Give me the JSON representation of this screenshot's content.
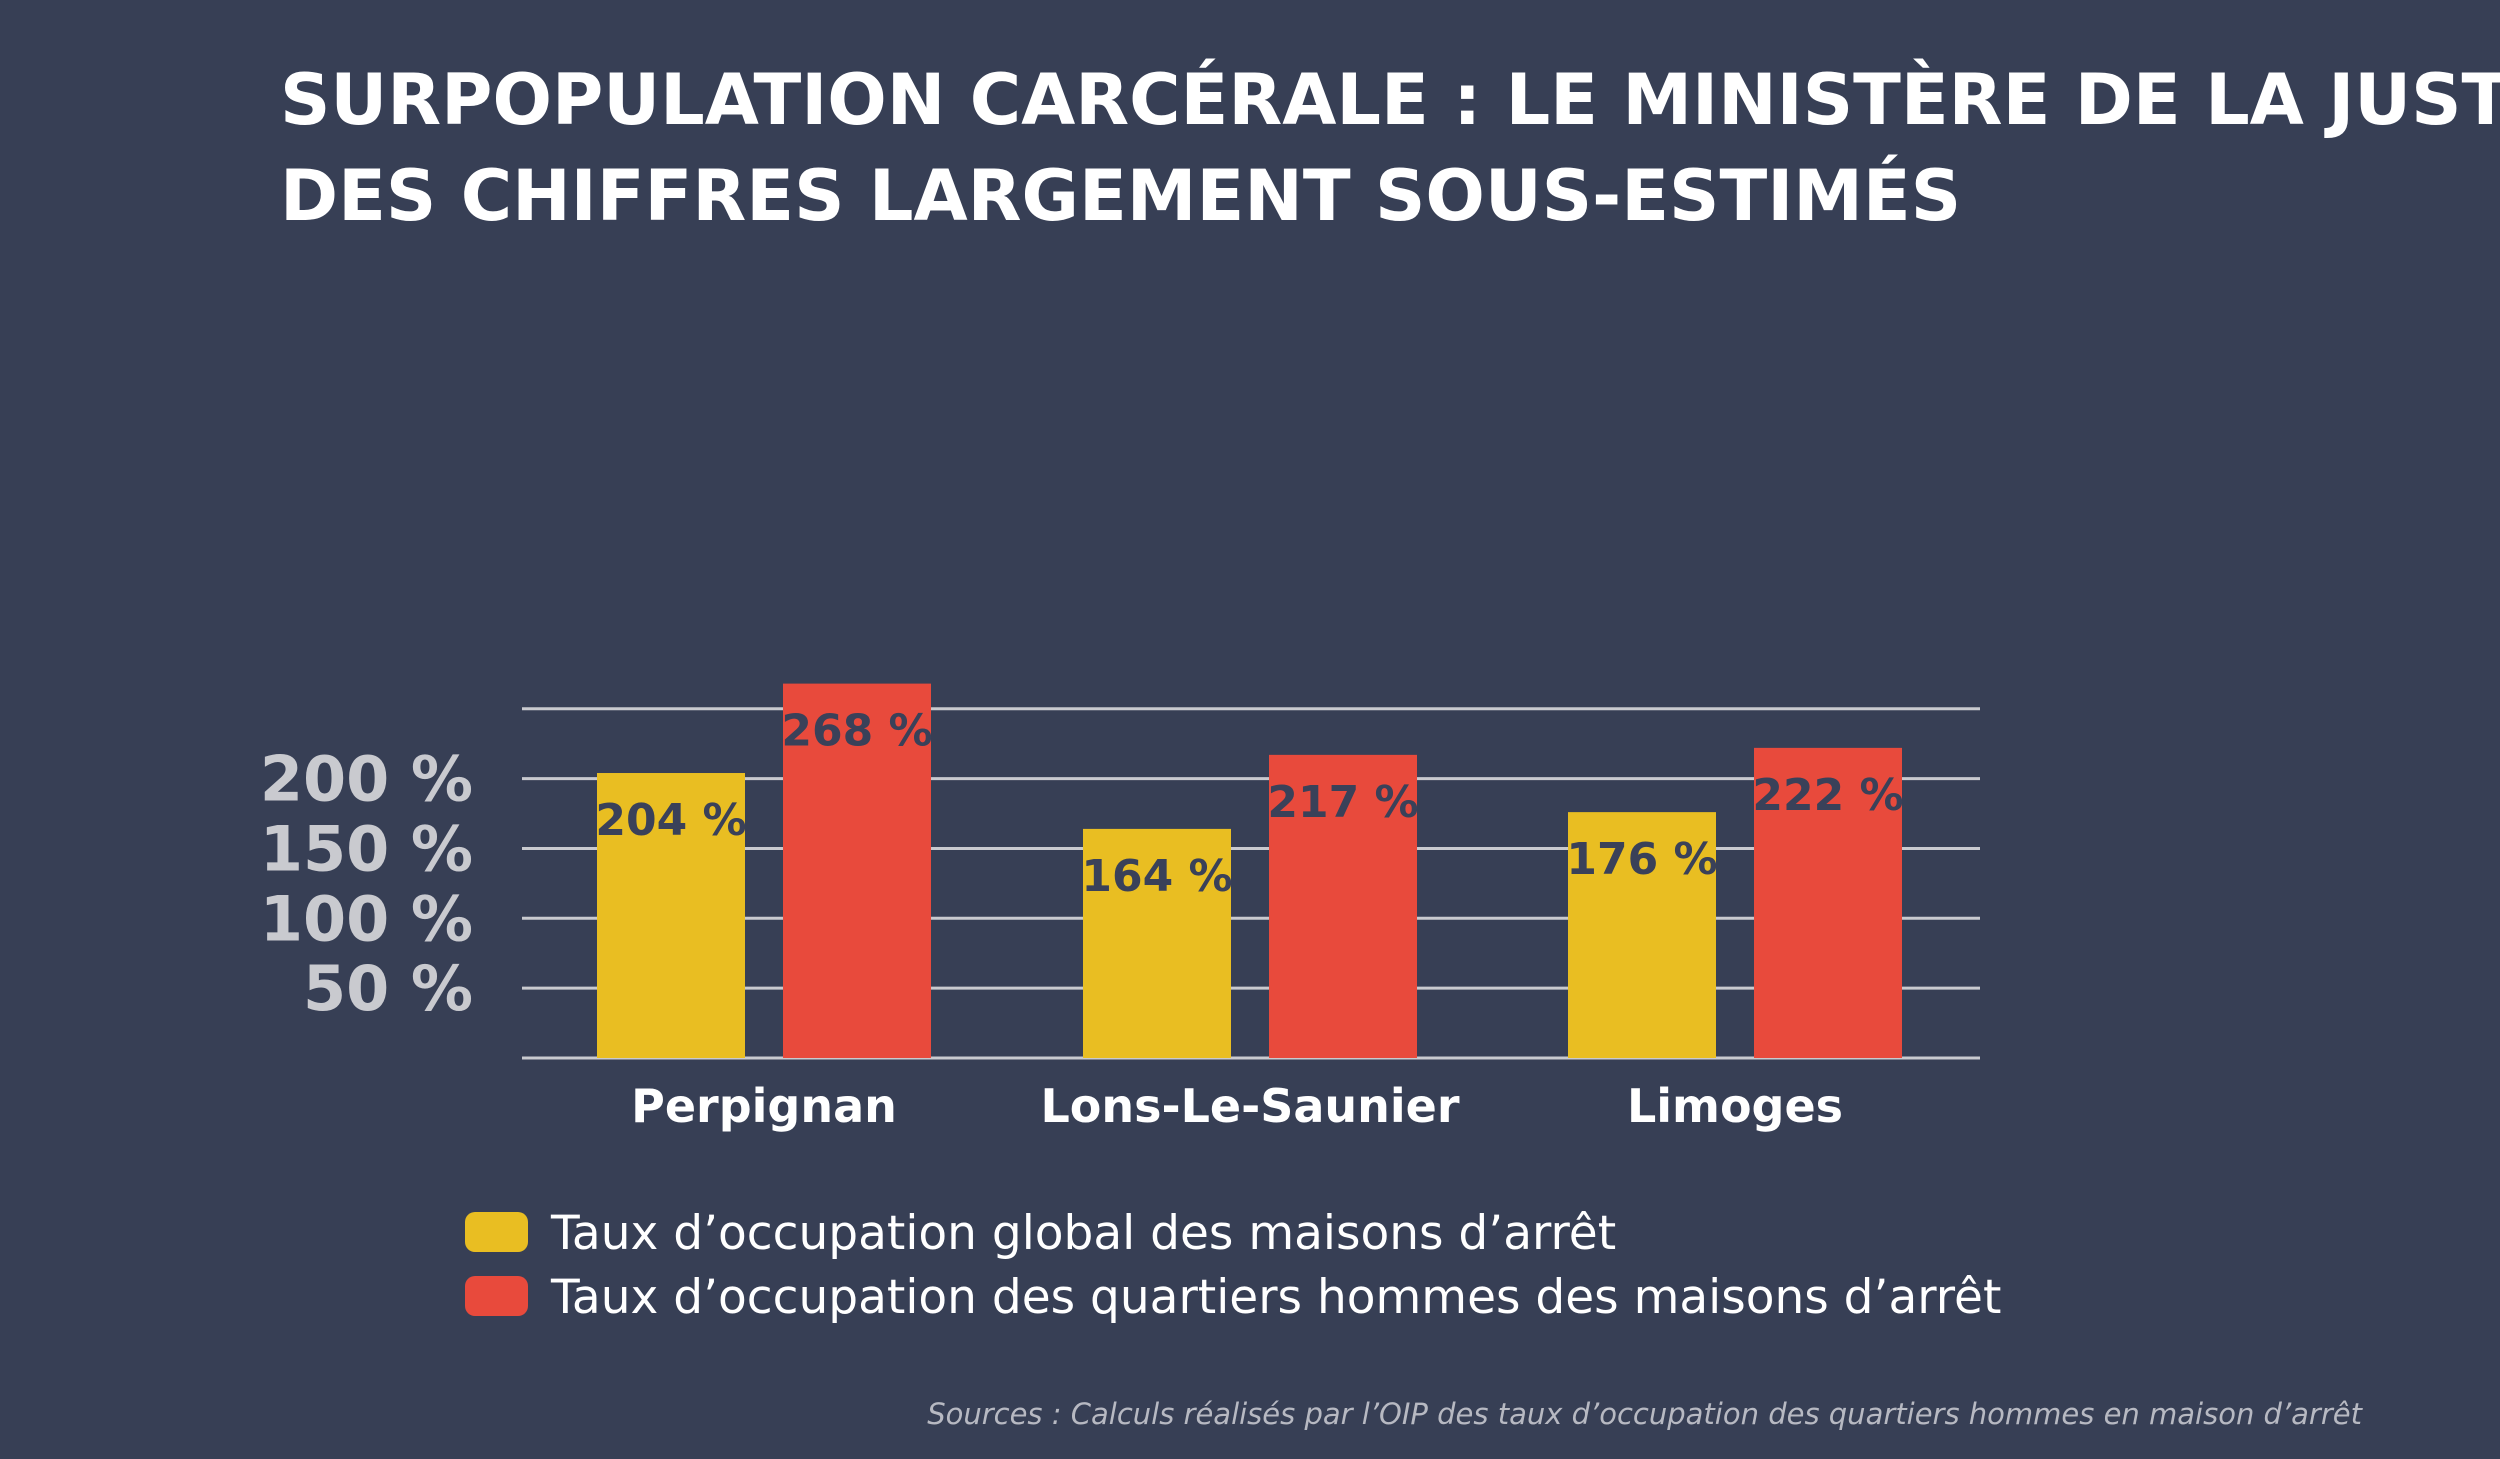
{
  "colors": {
    "background": "#373f55",
    "global": "#e9be22",
    "hommes": "#e84a3c",
    "grid": "#c9cacf",
    "label_on_bar": "#3a4159"
  },
  "title_lines": [
    "SURPOPULATION CARCÉRALE : LE MINISTÈRE DE LA JUSTICE AFFICHE",
    "DES CHIFFRES LARGEMENT SOUS-ESTIMÉS"
  ],
  "source": "Sources : Calculs réalisés par l’OIP des taux d’occupation des quartiers hommes en maison d’arrêt",
  "chart_data": {
    "type": "bar",
    "title": "SURPOPULATION CARCÉRALE : LE MINISTÈRE DE LA JUSTICE AFFICHE DES CHIFFRES LARGEMENT SOUS-ESTIMÉS",
    "categories": [
      "Perpignan",
      "Lons-Le-Saunier",
      "Limoges"
    ],
    "series": [
      {
        "name": "Taux d’occupation global des maisons d’arrêt",
        "values": [
          204,
          164,
          176
        ],
        "labels": [
          "204 %",
          "164 %",
          "176 %"
        ],
        "color": "#e9be22"
      },
      {
        "name": "Taux d’occupation des quartiers hommes des maisons d’arrêt",
        "values": [
          268,
          217,
          222
        ],
        "labels": [
          "268 %",
          "217 %",
          "222 %"
        ],
        "color": "#e84a3c"
      }
    ],
    "y_ticks": [
      {
        "value": 50,
        "label": "50 %"
      },
      {
        "value": 100,
        "label": "100 %"
      },
      {
        "value": 150,
        "label": "150 %"
      },
      {
        "value": 200,
        "label": "200 %"
      },
      {
        "value": 250,
        "label": ""
      }
    ],
    "ylim": [
      0,
      270
    ],
    "grid": true,
    "legend_position": "bottom"
  }
}
